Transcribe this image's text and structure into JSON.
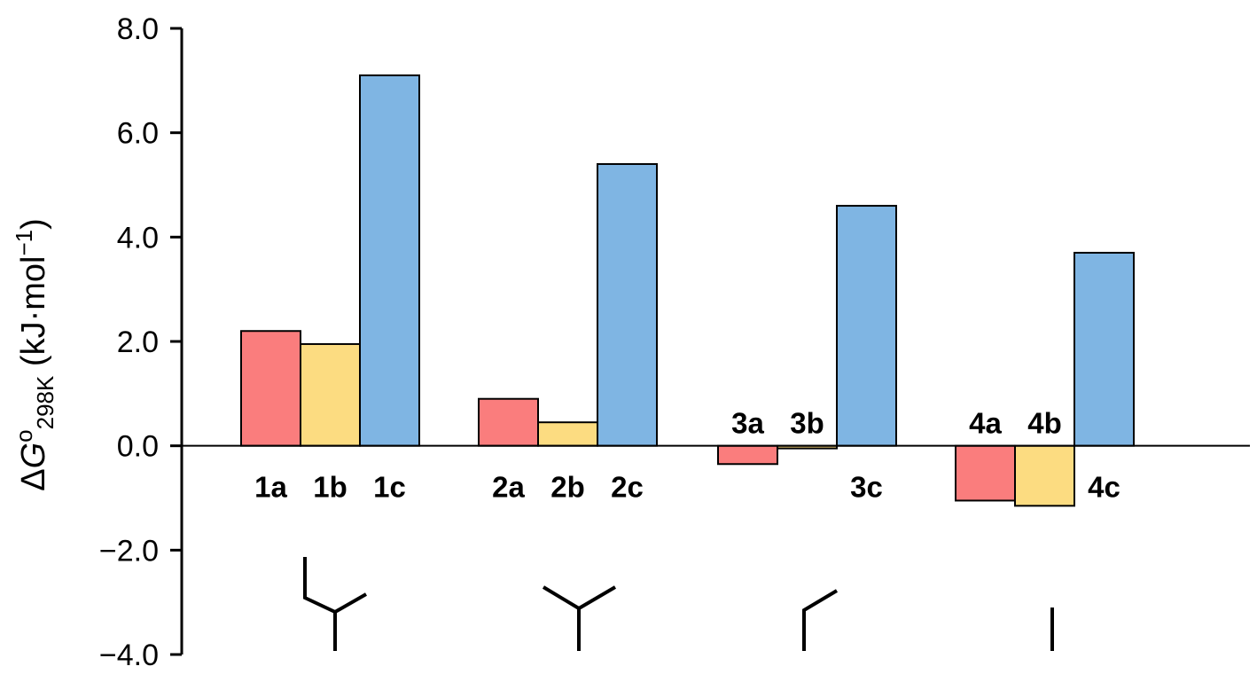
{
  "chart_data": {
    "type": "bar",
    "title": "",
    "ylabel": {
      "delta": "Δ",
      "symbol": "G",
      "superscript": "o",
      "subscript": "298K",
      "units_open": " (kJ·mol",
      "units_exp": "−1",
      "units_close": ")"
    },
    "ylim": [
      -4.0,
      8.0
    ],
    "yticks": [
      "8.0",
      "6.0",
      "4.0",
      "2.0",
      "0.0",
      "−2.0",
      "−4.0"
    ],
    "ytick_values": [
      8,
      6,
      4,
      2,
      0,
      -2,
      -4
    ],
    "groups": [
      "1",
      "2",
      "3",
      "4"
    ],
    "series": [
      {
        "key": "a",
        "color": "#fa7d7d",
        "values": [
          2.2,
          0.9,
          -0.35,
          -1.05
        ]
      },
      {
        "key": "b",
        "color": "#fcdc81",
        "values": [
          1.95,
          0.45,
          -0.05,
          -1.15
        ]
      },
      {
        "key": "c",
        "color": "#7fb5e3",
        "values": [
          7.1,
          5.4,
          4.6,
          3.7
        ]
      }
    ],
    "bar_labels": [
      [
        "1a",
        "1b",
        "1c"
      ],
      [
        "2a",
        "2b",
        "2c"
      ],
      [
        "3a",
        "3b",
        "3c"
      ],
      [
        "4a",
        "4b",
        "4c"
      ]
    ],
    "grid": false,
    "legend": "none",
    "structure_icons": [
      "branched-y-with-bend",
      "y-branch",
      "bent-line",
      "straight-line"
    ]
  }
}
